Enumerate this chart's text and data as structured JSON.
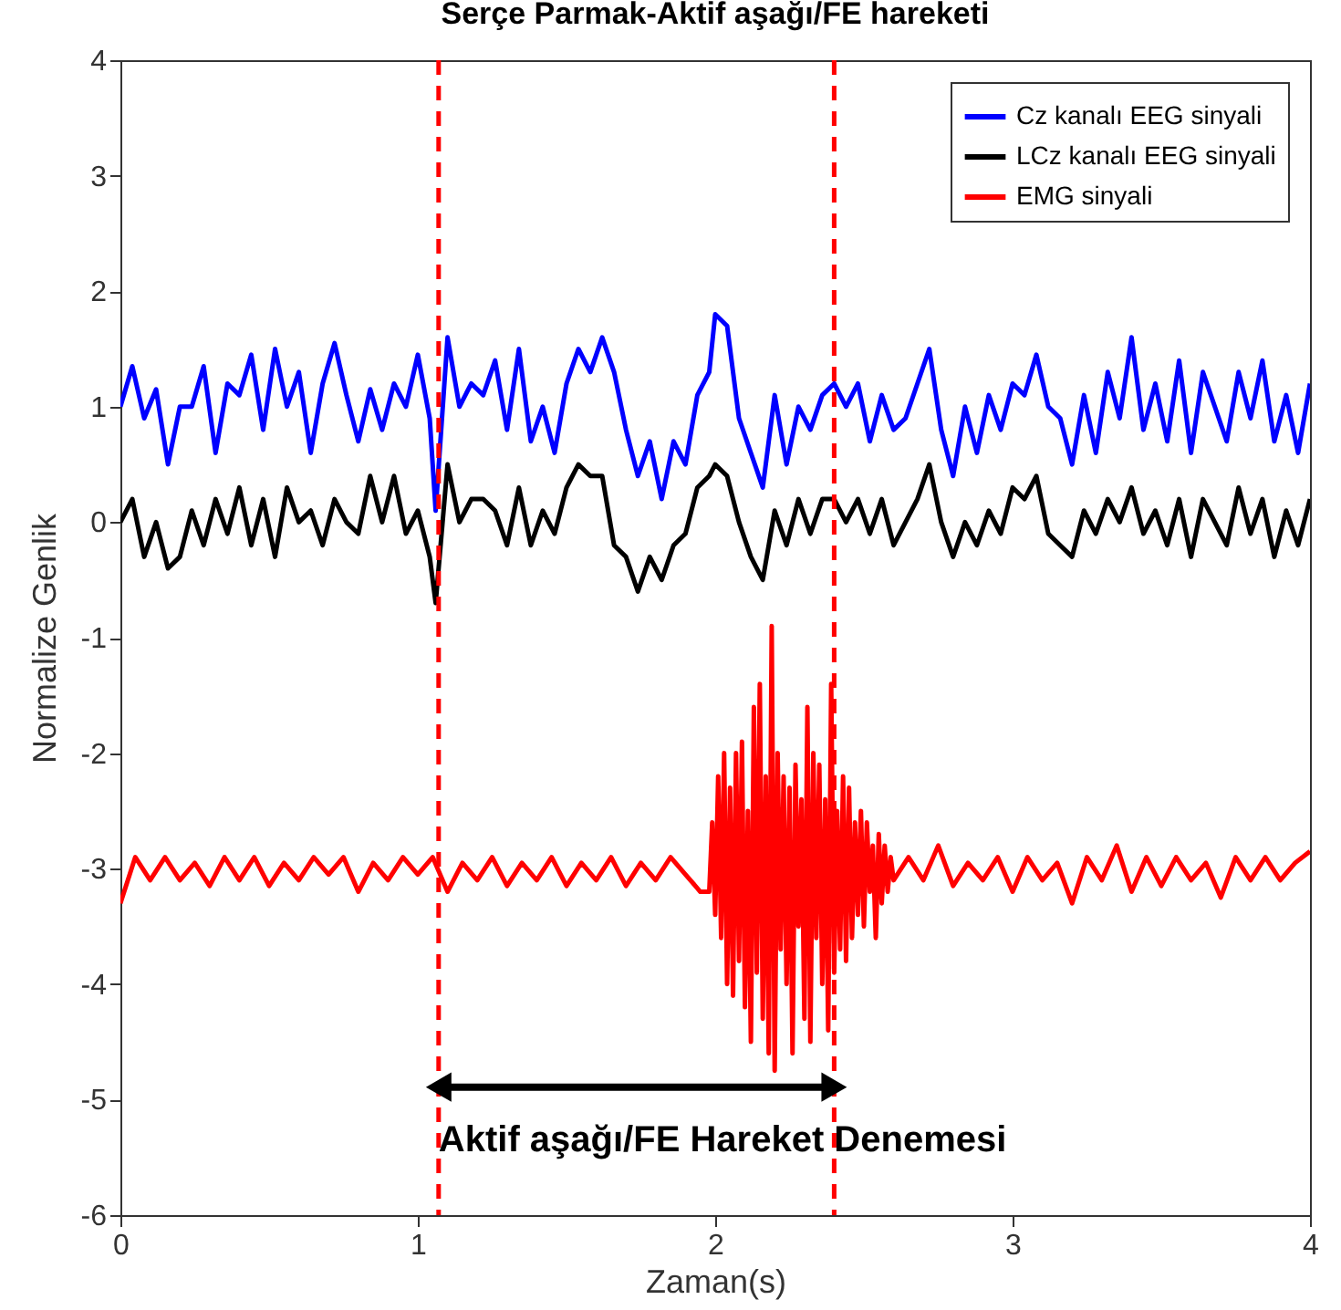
{
  "chart_data": {
    "type": "line",
    "title": "Serçe Parmak-Aktif aşağı/FE hareketi",
    "xlabel": "Zaman(s)",
    "ylabel": "Normalize Genlik",
    "x": [
      0,
      0.04,
      0.08,
      0.12,
      0.16,
      0.2,
      0.24,
      0.28,
      0.32,
      0.36,
      0.4,
      0.44,
      0.48,
      0.52,
      0.56,
      0.6,
      0.64,
      0.68,
      0.72,
      0.76,
      0.8,
      0.84,
      0.88,
      0.92,
      0.96,
      1.0,
      1.04,
      1.06,
      1.1,
      1.14,
      1.18,
      1.22,
      1.26,
      1.3,
      1.34,
      1.38,
      1.42,
      1.46,
      1.5,
      1.54,
      1.58,
      1.62,
      1.66,
      1.7,
      1.74,
      1.78,
      1.82,
      1.86,
      1.9,
      1.94,
      1.98,
      2.0,
      2.04,
      2.08,
      2.12,
      2.16,
      2.2,
      2.24,
      2.28,
      2.32,
      2.36,
      2.4,
      2.44,
      2.48,
      2.52,
      2.56,
      2.6,
      2.64,
      2.68,
      2.72,
      2.76,
      2.8,
      2.84,
      2.88,
      2.92,
      2.96,
      3.0,
      3.04,
      3.08,
      3.12,
      3.16,
      3.2,
      3.24,
      3.28,
      3.32,
      3.36,
      3.4,
      3.44,
      3.48,
      3.52,
      3.56,
      3.6,
      3.64,
      3.68,
      3.72,
      3.76,
      3.8,
      3.84,
      3.88,
      3.92,
      3.96,
      4.0
    ],
    "series": [
      {
        "name": "Cz kanalı EEG sinyali",
        "color": "#0000ff",
        "values": [
          1.0,
          1.35,
          0.9,
          1.15,
          0.5,
          1.0,
          1.0,
          1.35,
          0.6,
          1.2,
          1.1,
          1.45,
          0.8,
          1.5,
          1.0,
          1.3,
          0.6,
          1.2,
          1.55,
          1.1,
          0.7,
          1.15,
          0.8,
          1.2,
          1.0,
          1.45,
          0.9,
          0.1,
          1.6,
          1.0,
          1.2,
          1.1,
          1.4,
          0.8,
          1.5,
          0.7,
          1.0,
          0.6,
          1.2,
          1.5,
          1.3,
          1.6,
          1.3,
          0.8,
          0.4,
          0.7,
          0.2,
          0.7,
          0.5,
          1.1,
          1.3,
          1.8,
          1.7,
          0.9,
          0.6,
          0.3,
          1.1,
          0.5,
          1.0,
          0.8,
          1.1,
          1.2,
          1.0,
          1.2,
          0.7,
          1.1,
          0.8,
          0.9,
          1.2,
          1.5,
          0.8,
          0.4,
          1.0,
          0.6,
          1.1,
          0.8,
          1.2,
          1.1,
          1.45,
          1.0,
          0.9,
          0.5,
          1.1,
          0.6,
          1.3,
          0.9,
          1.6,
          0.8,
          1.2,
          0.7,
          1.4,
          0.6,
          1.3,
          1.0,
          0.7,
          1.3,
          0.9,
          1.4,
          0.7,
          1.1,
          0.6,
          1.2
        ]
      },
      {
        "name": "LCz kanalı EEG sinyali",
        "color": "#000000",
        "values": [
          0.0,
          0.2,
          -0.3,
          0.0,
          -0.4,
          -0.3,
          0.1,
          -0.2,
          0.2,
          -0.1,
          0.3,
          -0.2,
          0.2,
          -0.3,
          0.3,
          0.0,
          0.1,
          -0.2,
          0.2,
          0.0,
          -0.1,
          0.4,
          0.0,
          0.4,
          -0.1,
          0.1,
          -0.3,
          -0.7,
          0.5,
          0.0,
          0.2,
          0.2,
          0.1,
          -0.2,
          0.3,
          -0.2,
          0.1,
          -0.1,
          0.3,
          0.5,
          0.4,
          0.4,
          -0.2,
          -0.3,
          -0.6,
          -0.3,
          -0.5,
          -0.2,
          -0.1,
          0.3,
          0.4,
          0.5,
          0.4,
          0.0,
          -0.3,
          -0.5,
          0.1,
          -0.2,
          0.2,
          -0.1,
          0.2,
          0.2,
          0.0,
          0.2,
          -0.1,
          0.2,
          -0.2,
          0.0,
          0.2,
          0.5,
          0.0,
          -0.3,
          0.0,
          -0.2,
          0.1,
          -0.1,
          0.3,
          0.2,
          0.4,
          -0.1,
          -0.2,
          -0.3,
          0.1,
          -0.1,
          0.2,
          0.0,
          0.3,
          -0.1,
          0.1,
          -0.2,
          0.2,
          -0.3,
          0.2,
          0.0,
          -0.2,
          0.3,
          -0.1,
          0.2,
          -0.3,
          0.1,
          -0.2,
          0.2
        ]
      },
      {
        "name": "EMG sinyali",
        "color": "#ff0000",
        "x": [
          0,
          0.05,
          0.1,
          0.15,
          0.2,
          0.25,
          0.3,
          0.35,
          0.4,
          0.45,
          0.5,
          0.55,
          0.6,
          0.65,
          0.7,
          0.75,
          0.8,
          0.85,
          0.9,
          0.95,
          1.0,
          1.05,
          1.1,
          1.15,
          1.2,
          1.25,
          1.3,
          1.35,
          1.4,
          1.45,
          1.5,
          1.55,
          1.6,
          1.65,
          1.7,
          1.75,
          1.8,
          1.85,
          1.9,
          1.95,
          1.98,
          1.99,
          2.0,
          2.01,
          2.02,
          2.03,
          2.04,
          2.05,
          2.06,
          2.07,
          2.08,
          2.09,
          2.1,
          2.11,
          2.12,
          2.13,
          2.14,
          2.15,
          2.16,
          2.17,
          2.18,
          2.19,
          2.2,
          2.21,
          2.22,
          2.23,
          2.24,
          2.25,
          2.26,
          2.27,
          2.28,
          2.29,
          2.3,
          2.31,
          2.32,
          2.33,
          2.34,
          2.35,
          2.36,
          2.37,
          2.38,
          2.39,
          2.4,
          2.41,
          2.42,
          2.43,
          2.44,
          2.45,
          2.46,
          2.47,
          2.48,
          2.49,
          2.5,
          2.51,
          2.52,
          2.53,
          2.54,
          2.55,
          2.56,
          2.57,
          2.58,
          2.59,
          2.6,
          2.65,
          2.7,
          2.75,
          2.8,
          2.85,
          2.9,
          2.95,
          3.0,
          3.05,
          3.1,
          3.15,
          3.2,
          3.25,
          3.3,
          3.35,
          3.4,
          3.45,
          3.5,
          3.55,
          3.6,
          3.65,
          3.7,
          3.75,
          3.8,
          3.85,
          3.9,
          3.95,
          4.0
        ],
        "values": [
          -3.3,
          -2.9,
          -3.1,
          -2.9,
          -3.1,
          -2.95,
          -3.15,
          -2.9,
          -3.1,
          -2.9,
          -3.15,
          -2.95,
          -3.1,
          -2.9,
          -3.05,
          -2.9,
          -3.2,
          -2.95,
          -3.1,
          -2.9,
          -3.05,
          -2.9,
          -3.2,
          -2.95,
          -3.1,
          -2.9,
          -3.15,
          -2.95,
          -3.1,
          -2.9,
          -3.15,
          -2.95,
          -3.1,
          -2.9,
          -3.15,
          -2.95,
          -3.1,
          -2.9,
          -3.05,
          -3.2,
          -3.2,
          -2.6,
          -3.4,
          -2.2,
          -3.6,
          -2.0,
          -4.0,
          -2.3,
          -4.1,
          -2.0,
          -3.8,
          -1.9,
          -4.2,
          -2.5,
          -4.5,
          -1.6,
          -3.9,
          -1.4,
          -4.3,
          -2.2,
          -4.6,
          -0.9,
          -4.75,
          -2.0,
          -3.7,
          -2.2,
          -4.0,
          -2.3,
          -4.6,
          -2.1,
          -3.5,
          -2.4,
          -4.3,
          -1.6,
          -4.5,
          -2.0,
          -3.6,
          -2.1,
          -4.0,
          -2.4,
          -4.4,
          -1.4,
          -3.9,
          -2.5,
          -3.7,
          -2.2,
          -3.8,
          -2.3,
          -3.6,
          -2.6,
          -3.4,
          -2.5,
          -3.5,
          -2.6,
          -3.2,
          -2.8,
          -3.6,
          -2.7,
          -3.3,
          -2.8,
          -3.2,
          -2.9,
          -3.1,
          -2.9,
          -3.1,
          -2.8,
          -3.15,
          -2.95,
          -3.1,
          -2.9,
          -3.2,
          -2.9,
          -3.1,
          -2.95,
          -3.3,
          -2.9,
          -3.1,
          -2.8,
          -3.2,
          -2.9,
          -3.15,
          -2.9,
          -3.1,
          -2.95,
          -3.25,
          -2.9,
          -3.1,
          -2.9,
          -3.1,
          -2.95,
          -2.85
        ]
      }
    ],
    "xlim": [
      0,
      4
    ],
    "xticks": [
      0,
      1,
      2,
      3,
      4
    ],
    "ylim": [
      -6,
      4
    ],
    "yticks": [
      -6,
      -5,
      -4,
      -3,
      -2,
      -1,
      0,
      1,
      2,
      3,
      4
    ],
    "ref_lines": [
      {
        "axis": "x",
        "value": 1.07,
        "color": "#ff0000",
        "line_style": "dashed"
      },
      {
        "axis": "x",
        "value": 2.4,
        "color": "#ff0000",
        "line_style": "dashed"
      }
    ],
    "annotations": [
      {
        "text": "Aktif aşağı/FE Hareket Denemesi",
        "x": 1.07,
        "y": -5.35
      }
    ],
    "legend": "top right",
    "grid": false
  }
}
